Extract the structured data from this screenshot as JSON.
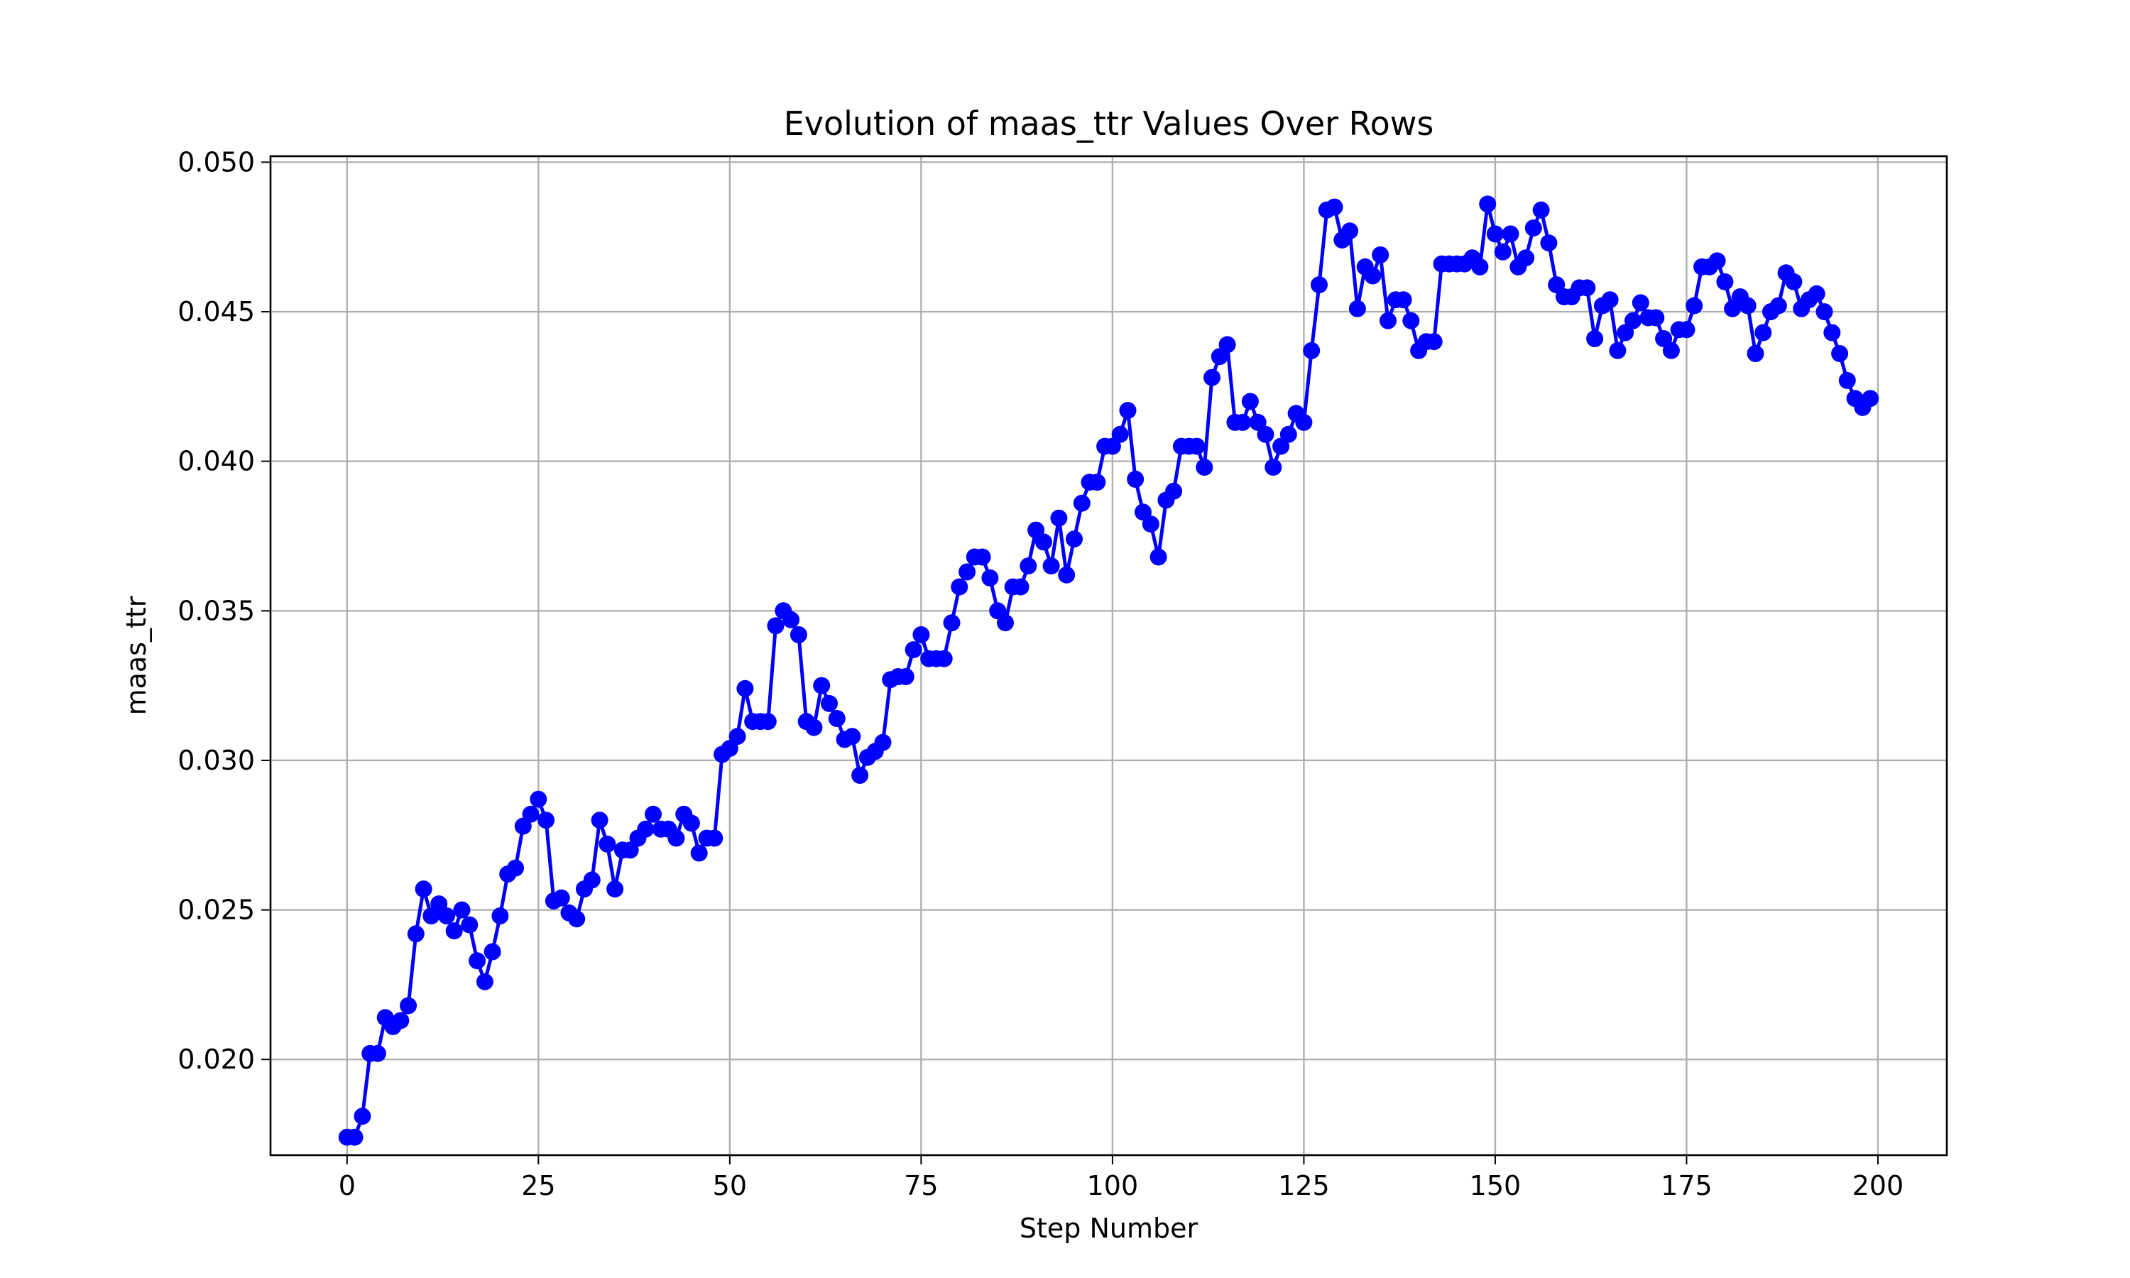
{
  "chart_data": {
    "type": "line",
    "title": "Evolution of maas_ttr Values Over Rows",
    "xlabel": "Step Number",
    "ylabel": "maas_ttr",
    "xlim": [
      -10,
      209
    ],
    "ylim": [
      0.0168,
      0.0502
    ],
    "xticks": [
      0,
      25,
      50,
      75,
      100,
      125,
      150,
      175,
      200
    ],
    "xtick_labels": [
      "0",
      "25",
      "50",
      "75",
      "100",
      "125",
      "150",
      "175",
      "200"
    ],
    "yticks": [
      0.02,
      0.025,
      0.03,
      0.035,
      0.04,
      0.045,
      0.05
    ],
    "ytick_labels": [
      "0.020",
      "0.025",
      "0.030",
      "0.035",
      "0.040",
      "0.045",
      "0.050"
    ],
    "grid": true,
    "series": [
      {
        "color": "#0000ff",
        "marker": "circle",
        "y": [
          0.0174,
          0.0174,
          0.0181,
          0.0202,
          0.0202,
          0.0214,
          0.0211,
          0.0213,
          0.0218,
          0.0242,
          0.0257,
          0.0248,
          0.0252,
          0.0248,
          0.0243,
          0.025,
          0.0245,
          0.0233,
          0.0226,
          0.0236,
          0.0248,
          0.0262,
          0.0264,
          0.0278,
          0.0282,
          0.0287,
          0.028,
          0.0253,
          0.0254,
          0.0249,
          0.0247,
          0.0257,
          0.026,
          0.028,
          0.0272,
          0.0257,
          0.027,
          0.027,
          0.0274,
          0.0277,
          0.0282,
          0.0277,
          0.0277,
          0.0274,
          0.0282,
          0.0279,
          0.0269,
          0.0274,
          0.0274,
          0.0302,
          0.0304,
          0.0308,
          0.0324,
          0.0313,
          0.0313,
          0.0313,
          0.0345,
          0.035,
          0.0347,
          0.0342,
          0.0313,
          0.0311,
          0.0325,
          0.0319,
          0.0314,
          0.0307,
          0.0308,
          0.0295,
          0.0301,
          0.0303,
          0.0306,
          0.0327,
          0.0328,
          0.0328,
          0.0337,
          0.0342,
          0.0334,
          0.0334,
          0.0334,
          0.0346,
          0.0358,
          0.0363,
          0.0368,
          0.0368,
          0.0361,
          0.035,
          0.0346,
          0.0358,
          0.0358,
          0.0365,
          0.0377,
          0.0373,
          0.0365,
          0.0381,
          0.0362,
          0.0374,
          0.0386,
          0.0393,
          0.0393,
          0.0405,
          0.0405,
          0.0409,
          0.0417,
          0.0394,
          0.0383,
          0.0379,
          0.0368,
          0.0387,
          0.039,
          0.0405,
          0.0405,
          0.0405,
          0.0398,
          0.0428,
          0.0435,
          0.0439,
          0.0413,
          0.0413,
          0.042,
          0.0413,
          0.0409,
          0.0398,
          0.0405,
          0.0409,
          0.0416,
          0.0413,
          0.0437,
          0.0459,
          0.0484,
          0.0485,
          0.0474,
          0.0477,
          0.0451,
          0.0465,
          0.0462,
          0.0469,
          0.0447,
          0.0454,
          0.0454,
          0.0447,
          0.0437,
          0.044,
          0.044,
          0.0466,
          0.0466,
          0.0466,
          0.0466,
          0.0468,
          0.0465,
          0.0486,
          0.0476,
          0.047,
          0.0476,
          0.0465,
          0.0468,
          0.0478,
          0.0484,
          0.0473,
          0.0459,
          0.0455,
          0.0455,
          0.0458,
          0.0458,
          0.0441,
          0.0452,
          0.0454,
          0.0437,
          0.0443,
          0.0447,
          0.0453,
          0.0448,
          0.0448,
          0.0441,
          0.0437,
          0.0444,
          0.0444,
          0.0452,
          0.0465,
          0.0465,
          0.0467,
          0.046,
          0.0451,
          0.0455,
          0.0452,
          0.0436,
          0.0443,
          0.045,
          0.0452,
          0.0463,
          0.046,
          0.0451,
          0.0454,
          0.0456,
          0.045,
          0.0443,
          0.0436,
          0.0427,
          0.0421,
          0.0418,
          0.0421
        ]
      }
    ]
  }
}
